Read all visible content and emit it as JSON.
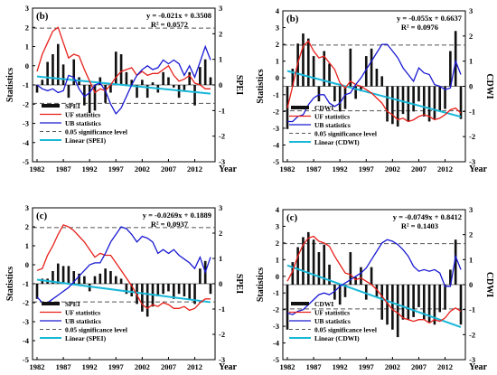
{
  "chart_data": [
    {
      "type": "bar",
      "panel_label": "(b)",
      "xlabel": "Year",
      "ylabel_left": "Statistics",
      "ylabel_right": "SPEI",
      "ylim_left": [
        -5,
        3
      ],
      "ylim_right": [
        -3,
        3
      ],
      "xticks": [
        "1982",
        "1987",
        "1992",
        "1997",
        "2002",
        "2007",
        "2012"
      ],
      "equation": "y = -0.021x + 0.3508",
      "r2": "R² = 0.0572",
      "index_name": "SPEI",
      "years": [
        1982,
        1983,
        1984,
        1985,
        1986,
        1987,
        1988,
        1989,
        1990,
        1991,
        1992,
        1993,
        1994,
        1995,
        1996,
        1997,
        1998,
        1999,
        2000,
        2001,
        2002,
        2003,
        2004,
        2005,
        2006,
        2007,
        2008,
        2009,
        2010,
        2011,
        2012,
        2013,
        2014,
        2015
      ],
      "bars": [
        -0.3,
        0.2,
        0.9,
        1.2,
        1.6,
        0.8,
        -0.5,
        1.0,
        0.3,
        -0.8,
        -1.1,
        -1.0,
        0.3,
        -0.7,
        -0.3,
        1.3,
        1.2,
        0.5,
        0.2,
        -0.5,
        0.2,
        -0.5,
        0.1,
        -0.3,
        0.5,
        0.3,
        -0.1,
        -0.5,
        -0.2,
        0.5,
        -0.8,
        0.7,
        1.0,
        0.3
      ],
      "uf": [
        -0.3,
        0.6,
        1.2,
        1.8,
        2.0,
        1.2,
        0.4,
        0.6,
        0.5,
        -0.2,
        -0.8,
        -1.4,
        -1.2,
        -1.3,
        -1.0,
        -0.6,
        -0.3,
        -0.2,
        -0.1,
        -0.5,
        -0.3,
        -0.5,
        -0.4,
        -0.4,
        -0.2,
        0.0,
        -0.5,
        -0.8,
        -0.7,
        -0.5,
        -0.9,
        -1.0,
        -1.2,
        -1.2
      ],
      "ub": [
        -1.0,
        -1.2,
        -1.3,
        -1.2,
        -1.4,
        -1.3,
        -0.5,
        -0.6,
        -1.2,
        -1.6,
        -1.4,
        -1.0,
        -0.9,
        -1.3,
        -2.0,
        -2.5,
        -2.2,
        -1.6,
        -1.0,
        -0.5,
        -0.2,
        0.0,
        -0.2,
        -0.1,
        0.3,
        0.1,
        0.3,
        0.1,
        -0.5,
        0.0,
        -0.6,
        0.2,
        1.0,
        0.3
      ],
      "trend": [
        0.33,
        -0.34
      ],
      "significance_level": [
        1.96,
        -1.96
      ],
      "legend": [
        "SPEI",
        "UF statistics",
        "UB statistics",
        "0.05 significance level",
        "Linear (SPEI)"
      ]
    },
    {
      "type": "bar",
      "panel_label": "(b)",
      "xlabel": "Year",
      "ylabel_left": "Statistics",
      "ylabel_right": "CDWI",
      "ylim_left": [
        -5,
        4
      ],
      "ylim_right": [
        -3,
        3
      ],
      "xticks": [
        "1982",
        "1987",
        "1992",
        "1997",
        "2002",
        "2007",
        "2012"
      ],
      "equation": "y = -0.055x + 0.6637",
      "r2": "R² = 0.0976",
      "index_name": "CDWI",
      "years": [
        1982,
        1983,
        1984,
        1985,
        1986,
        1987,
        1988,
        1989,
        1990,
        1991,
        1992,
        1993,
        1994,
        1995,
        1996,
        1997,
        1998,
        1999,
        2000,
        2001,
        2002,
        2003,
        2004,
        2005,
        2006,
        2007,
        2008,
        2009,
        2010,
        2011,
        2012,
        2013,
        2014,
        2015
      ],
      "bars": [
        -1.7,
        0.7,
        1.7,
        2.1,
        1.9,
        1.2,
        -0.6,
        1.4,
        0.9,
        -0.6,
        -1.0,
        -0.9,
        1.5,
        -0.5,
        -0.2,
        1.2,
        1.5,
        0.7,
        0.4,
        -1.4,
        -1.5,
        -1.6,
        -1.1,
        -1.4,
        -1.0,
        -0.6,
        -1.2,
        -1.4,
        -1.3,
        -1.0,
        -0.9,
        1.4,
        2.2,
        -1.3
      ],
      "uf": [
        -1.8,
        -0.5,
        0.9,
        1.9,
        2.2,
        1.6,
        1.2,
        1.3,
        0.9,
        0.5,
        -0.3,
        -0.6,
        -0.2,
        -0.4,
        -0.5,
        -0.7,
        -0.9,
        -1.2,
        -1.5,
        -2.0,
        -2.2,
        -2.5,
        -2.4,
        -2.6,
        -2.5,
        -2.3,
        -2.2,
        -2.3,
        -2.5,
        -2.4,
        -2.2,
        -1.9,
        -1.8,
        -2.1
      ],
      "ub": [
        -2.6,
        -2.6,
        -2.3,
        -2.2,
        -1.6,
        -1.2,
        -1.0,
        -1.0,
        -1.5,
        -1.7,
        -1.5,
        -1.0,
        -0.9,
        -0.4,
        0.0,
        0.5,
        1.0,
        1.5,
        2.0,
        2.0,
        1.6,
        1.2,
        0.6,
        0.2,
        -0.2,
        0.6,
        0.3,
        0.2,
        -0.4,
        -0.5,
        -0.7,
        -0.6,
        1.0,
        0.2
      ],
      "trend": [
        0.61,
        -1.21
      ],
      "significance_level": [
        1.96,
        -1.96
      ],
      "legend": [
        "CDWI",
        "UF statistics",
        "UB statistics",
        "0.05 significance level",
        "Linear (CDWI)"
      ]
    },
    {
      "type": "bar",
      "panel_label": "(c)",
      "xlabel": "Year",
      "ylabel_left": "Statistics",
      "ylabel_right": "SPEI",
      "ylim_left": [
        -5,
        3
      ],
      "ylim_right": [
        -3,
        3
      ],
      "xticks": [
        "1982",
        "1987",
        "1992",
        "1997",
        "2002",
        "2007",
        "2012"
      ],
      "equation": "y = -0.0269x + 0.1889",
      "r2": "R² = 0.0937",
      "index_name": "SPEI",
      "years": [
        1982,
        1983,
        1984,
        1985,
        1986,
        1987,
        1988,
        1989,
        1990,
        1991,
        1992,
        1993,
        1994,
        1995,
        1996,
        1997,
        1998,
        1999,
        2000,
        2001,
        2002,
        2003,
        2004,
        2005,
        2006,
        2007,
        2008,
        2009,
        2010,
        2011,
        2012,
        2013,
        2014,
        2015
      ],
      "bars": [
        -0.6,
        0.2,
        0.2,
        0.5,
        0.8,
        0.7,
        0.7,
        0.5,
        0.4,
        0.3,
        -0.3,
        0.3,
        0.4,
        0.6,
        0.5,
        0.3,
        0.2,
        -0.4,
        -0.5,
        -0.8,
        -1.1,
        -1.3,
        -0.9,
        -0.5,
        -0.4,
        -0.3,
        -0.6,
        -0.4,
        -0.5,
        -0.6,
        -0.8,
        0.6,
        0.9,
        -0.4
      ],
      "uf": [
        -0.3,
        -0.2,
        0.5,
        1.0,
        1.6,
        2.1,
        2.0,
        1.8,
        1.5,
        1.2,
        0.8,
        0.4,
        0.6,
        0.5,
        0.5,
        0.1,
        -0.3,
        -0.7,
        -1.1,
        -1.6,
        -2.1,
        -2.3,
        -2.1,
        -2.2,
        -2.0,
        -2.1,
        -2.3,
        -2.3,
        -2.2,
        -2.4,
        -2.3,
        -2.0,
        -1.8,
        -1.8
      ],
      "ub": [
        -1.7,
        -2.0,
        -2.0,
        -1.8,
        -1.6,
        -1.4,
        -1.2,
        -0.9,
        -0.6,
        -0.3,
        0.0,
        0.1,
        0.1,
        0.6,
        1.2,
        1.6,
        2.0,
        1.9,
        1.6,
        1.2,
        1.5,
        1.4,
        1.2,
        0.6,
        0.8,
        0.6,
        0.8,
        0.5,
        0.3,
        0.1,
        -0.2,
        0.4,
        -0.4,
        0.4
      ],
      "trend": [
        0.16,
        -0.73
      ],
      "significance_level": [
        1.96,
        -1.96
      ],
      "legend": [
        "SPEI",
        "UF statistics",
        "UB statistics",
        "0.05 significance level",
        "Linear (SPEI)"
      ]
    },
    {
      "type": "bar",
      "panel_label": "(c)",
      "xlabel": "Year",
      "ylabel_left": "Statistics",
      "ylabel_right": "CDWI",
      "ylim_left": [
        -5,
        4
      ],
      "ylim_right": [
        -3,
        3
      ],
      "xticks": [
        "1982",
        "1987",
        "1992",
        "1997",
        "2002",
        "2007",
        "2012"
      ],
      "equation": "y = -0.0749x + 0.8412",
      "r2": "R² = 0.1403",
      "index_name": "CDWI",
      "years": [
        1982,
        1983,
        1984,
        1985,
        1986,
        1987,
        1988,
        1989,
        1990,
        1991,
        1992,
        1993,
        1994,
        1995,
        1996,
        1997,
        1998,
        1999,
        2000,
        2001,
        2002,
        2003,
        2004,
        2005,
        2006,
        2007,
        2008,
        2009,
        2010,
        2011,
        2012,
        2013,
        2014,
        2015
      ],
      "bars": [
        -1.8,
        0.9,
        1.5,
        1.9,
        2.1,
        1.8,
        1.3,
        1.6,
        0.8,
        -0.6,
        -0.8,
        -0.5,
        1.3,
        0.3,
        0.7,
        -0.6,
        0.7,
        -0.5,
        -1.4,
        -1.6,
        -1.8,
        -2.1,
        -1.4,
        -1.4,
        -1.3,
        -0.9,
        -1.4,
        -1.5,
        -1.6,
        -1.1,
        -1.0,
        0.6,
        1.8,
        -1.6
      ],
      "uf": [
        -0.3,
        0.3,
        1.2,
        1.9,
        2.3,
        2.4,
        2.1,
        2.0,
        1.8,
        1.2,
        0.7,
        0.2,
        0.1,
        -0.2,
        -0.1,
        -0.3,
        -0.5,
        -0.8,
        -1.2,
        -1.6,
        -2.0,
        -2.2,
        -2.5,
        -2.6,
        -2.7,
        -2.6,
        -2.6,
        -2.8,
        -2.6,
        -2.7,
        -2.5,
        -2.1,
        -1.9,
        -2.1
      ],
      "ub": [
        -2.2,
        -2.3,
        -2.1,
        -2.0,
        -1.7,
        -1.4,
        -1.1,
        -1.0,
        -1.1,
        -0.9,
        -0.6,
        -0.4,
        -0.2,
        0.0,
        0.2,
        0.5,
        1.0,
        1.5,
        2.0,
        2.2,
        2.1,
        1.9,
        1.6,
        1.2,
        0.6,
        0.3,
        0.4,
        0.3,
        0.4,
        0.2,
        -0.6,
        -0.6,
        1.2,
        0.4
      ],
      "trend": [
        0.77,
        -1.7
      ],
      "significance_level": [
        1.96,
        -1.96
      ],
      "legend": [
        "CDWI",
        "UF statistics",
        "UB statistics",
        "0.05 significance level",
        "Linear (CDWI)"
      ]
    }
  ]
}
